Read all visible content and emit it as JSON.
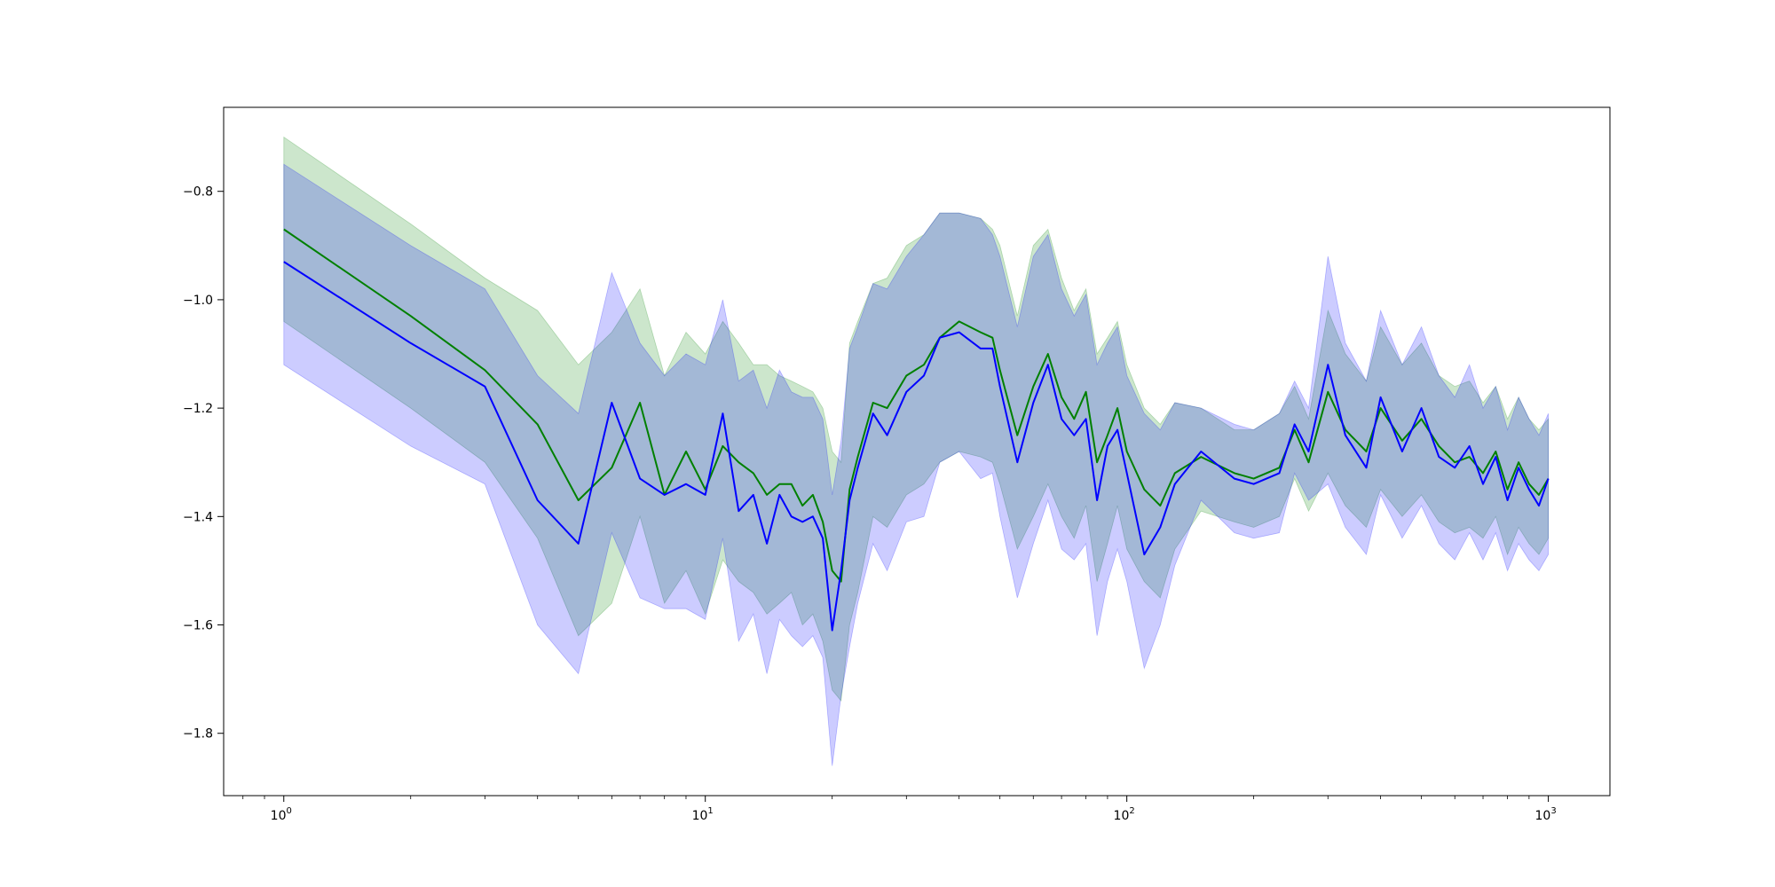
{
  "chart_data": {
    "type": "line",
    "title": "",
    "xlabel": "",
    "ylabel": "",
    "xscale": "log",
    "xlim": [
      0.72,
      1400
    ],
    "ylim": [
      -1.915,
      -0.645
    ],
    "grid": false,
    "x_ticks": [
      {
        "base": "10",
        "exp": "0"
      },
      {
        "base": "10",
        "exp": "1"
      },
      {
        "base": "10",
        "exp": "2"
      },
      {
        "base": "10",
        "exp": "3"
      }
    ],
    "y_ticks": [
      "−0.8",
      "−1.0",
      "−1.2",
      "−1.4",
      "−1.6",
      "−1.8"
    ],
    "y_tick_values": [
      -0.8,
      -1.0,
      -1.2,
      -1.4,
      -1.6,
      -1.8
    ],
    "series": [
      {
        "color": "#008000",
        "band_color": "#008000",
        "band_alpha": 0.2,
        "x": [
          1,
          2,
          3,
          4,
          5,
          6,
          7,
          8,
          9,
          10,
          11,
          12,
          13,
          14,
          15,
          16,
          17,
          18,
          19,
          20,
          21,
          22,
          23,
          25,
          27,
          30,
          33,
          36,
          40,
          45,
          48,
          50,
          55,
          60,
          65,
          70,
          75,
          80,
          85,
          90,
          95,
          100,
          110,
          120,
          130,
          150,
          180,
          200,
          230,
          250,
          270,
          300,
          330,
          370,
          400,
          450,
          500,
          550,
          600,
          650,
          700,
          750,
          800,
          850,
          900,
          950,
          1000
        ],
        "y": [
          -0.87,
          -1.03,
          -1.13,
          -1.23,
          -1.37,
          -1.31,
          -1.19,
          -1.36,
          -1.28,
          -1.35,
          -1.27,
          -1.3,
          -1.32,
          -1.36,
          -1.34,
          -1.34,
          -1.38,
          -1.36,
          -1.41,
          -1.5,
          -1.52,
          -1.35,
          -1.29,
          -1.19,
          -1.2,
          -1.14,
          -1.12,
          -1.07,
          -1.04,
          -1.06,
          -1.07,
          -1.13,
          -1.25,
          -1.16,
          -1.1,
          -1.18,
          -1.22,
          -1.17,
          -1.3,
          -1.25,
          -1.2,
          -1.28,
          -1.35,
          -1.38,
          -1.32,
          -1.29,
          -1.32,
          -1.33,
          -1.31,
          -1.24,
          -1.3,
          -1.17,
          -1.24,
          -1.28,
          -1.2,
          -1.26,
          -1.22,
          -1.27,
          -1.3,
          -1.29,
          -1.32,
          -1.28,
          -1.35,
          -1.3,
          -1.34,
          -1.36,
          -1.33
        ],
        "upper": [
          -0.7,
          -0.86,
          -0.96,
          -1.02,
          -1.12,
          -1.06,
          -0.98,
          -1.14,
          -1.06,
          -1.1,
          -1.04,
          -1.08,
          -1.12,
          -1.12,
          -1.14,
          -1.15,
          -1.16,
          -1.17,
          -1.2,
          -1.28,
          -1.3,
          -1.08,
          -1.04,
          -0.97,
          -0.96,
          -0.9,
          -0.88,
          -0.84,
          -0.84,
          -0.85,
          -0.87,
          -0.9,
          -1.03,
          -0.9,
          -0.87,
          -0.96,
          -1.02,
          -0.98,
          -1.1,
          -1.07,
          -1.04,
          -1.12,
          -1.2,
          -1.23,
          -1.19,
          -1.2,
          -1.24,
          -1.24,
          -1.21,
          -1.16,
          -1.22,
          -1.02,
          -1.1,
          -1.15,
          -1.05,
          -1.12,
          -1.08,
          -1.14,
          -1.16,
          -1.15,
          -1.19,
          -1.16,
          -1.22,
          -1.18,
          -1.22,
          -1.24,
          -1.22
        ],
        "lower": [
          -1.04,
          -1.2,
          -1.3,
          -1.44,
          -1.62,
          -1.56,
          -1.4,
          -1.56,
          -1.5,
          -1.58,
          -1.48,
          -1.52,
          -1.54,
          -1.58,
          -1.56,
          -1.54,
          -1.6,
          -1.58,
          -1.63,
          -1.72,
          -1.74,
          -1.6,
          -1.54,
          -1.4,
          -1.42,
          -1.36,
          -1.34,
          -1.3,
          -1.28,
          -1.29,
          -1.3,
          -1.34,
          -1.46,
          -1.4,
          -1.34,
          -1.4,
          -1.44,
          -1.38,
          -1.52,
          -1.45,
          -1.38,
          -1.46,
          -1.52,
          -1.55,
          -1.46,
          -1.39,
          -1.41,
          -1.42,
          -1.4,
          -1.33,
          -1.39,
          -1.32,
          -1.38,
          -1.42,
          -1.35,
          -1.4,
          -1.36,
          -1.41,
          -1.43,
          -1.42,
          -1.44,
          -1.4,
          -1.47,
          -1.42,
          -1.45,
          -1.47,
          -1.44
        ]
      },
      {
        "color": "#0000ff",
        "band_color": "#0000ff",
        "band_alpha": 0.2,
        "x": [
          1,
          2,
          3,
          4,
          5,
          6,
          7,
          8,
          9,
          10,
          11,
          12,
          13,
          14,
          15,
          16,
          17,
          18,
          19,
          20,
          21,
          22,
          23,
          25,
          27,
          30,
          33,
          36,
          40,
          45,
          48,
          50,
          55,
          60,
          65,
          70,
          75,
          80,
          85,
          90,
          95,
          100,
          110,
          120,
          130,
          150,
          180,
          200,
          230,
          250,
          270,
          300,
          330,
          370,
          400,
          450,
          500,
          550,
          600,
          650,
          700,
          750,
          800,
          850,
          900,
          950,
          1000
        ],
        "y": [
          -0.93,
          -1.08,
          -1.16,
          -1.37,
          -1.45,
          -1.19,
          -1.33,
          -1.36,
          -1.34,
          -1.36,
          -1.21,
          -1.39,
          -1.36,
          -1.45,
          -1.36,
          -1.4,
          -1.41,
          -1.4,
          -1.44,
          -1.61,
          -1.5,
          -1.37,
          -1.31,
          -1.21,
          -1.25,
          -1.17,
          -1.14,
          -1.07,
          -1.06,
          -1.09,
          -1.09,
          -1.16,
          -1.3,
          -1.19,
          -1.12,
          -1.22,
          -1.25,
          -1.22,
          -1.37,
          -1.27,
          -1.24,
          -1.32,
          -1.47,
          -1.42,
          -1.34,
          -1.28,
          -1.33,
          -1.34,
          -1.32,
          -1.23,
          -1.28,
          -1.12,
          -1.25,
          -1.31,
          -1.18,
          -1.28,
          -1.2,
          -1.29,
          -1.31,
          -1.27,
          -1.34,
          -1.29,
          -1.37,
          -1.31,
          -1.35,
          -1.38,
          -1.33
        ],
        "upper": [
          -0.75,
          -0.9,
          -0.98,
          -1.14,
          -1.21,
          -0.95,
          -1.08,
          -1.14,
          -1.1,
          -1.12,
          -1.0,
          -1.15,
          -1.13,
          -1.2,
          -1.13,
          -1.17,
          -1.18,
          -1.18,
          -1.22,
          -1.36,
          -1.26,
          -1.09,
          -1.05,
          -0.97,
          -0.98,
          -0.92,
          -0.88,
          -0.84,
          -0.84,
          -0.85,
          -0.88,
          -0.92,
          -1.05,
          -0.92,
          -0.88,
          -0.98,
          -1.03,
          -0.99,
          -1.12,
          -1.08,
          -1.05,
          -1.14,
          -1.21,
          -1.24,
          -1.19,
          -1.2,
          -1.23,
          -1.24,
          -1.21,
          -1.15,
          -1.2,
          -0.92,
          -1.08,
          -1.15,
          -1.02,
          -1.12,
          -1.05,
          -1.14,
          -1.18,
          -1.12,
          -1.2,
          -1.16,
          -1.24,
          -1.18,
          -1.22,
          -1.25,
          -1.21
        ],
        "lower": [
          -1.12,
          -1.27,
          -1.34,
          -1.6,
          -1.69,
          -1.43,
          -1.55,
          -1.57,
          -1.57,
          -1.59,
          -1.44,
          -1.63,
          -1.58,
          -1.69,
          -1.59,
          -1.62,
          -1.64,
          -1.62,
          -1.66,
          -1.86,
          -1.73,
          -1.64,
          -1.56,
          -1.45,
          -1.5,
          -1.41,
          -1.4,
          -1.3,
          -1.28,
          -1.33,
          -1.32,
          -1.4,
          -1.55,
          -1.45,
          -1.37,
          -1.46,
          -1.48,
          -1.45,
          -1.62,
          -1.52,
          -1.46,
          -1.52,
          -1.68,
          -1.6,
          -1.49,
          -1.37,
          -1.43,
          -1.44,
          -1.43,
          -1.32,
          -1.37,
          -1.34,
          -1.42,
          -1.47,
          -1.36,
          -1.44,
          -1.38,
          -1.45,
          -1.48,
          -1.43,
          -1.48,
          -1.43,
          -1.5,
          -1.45,
          -1.48,
          -1.5,
          -1.47
        ]
      }
    ]
  }
}
